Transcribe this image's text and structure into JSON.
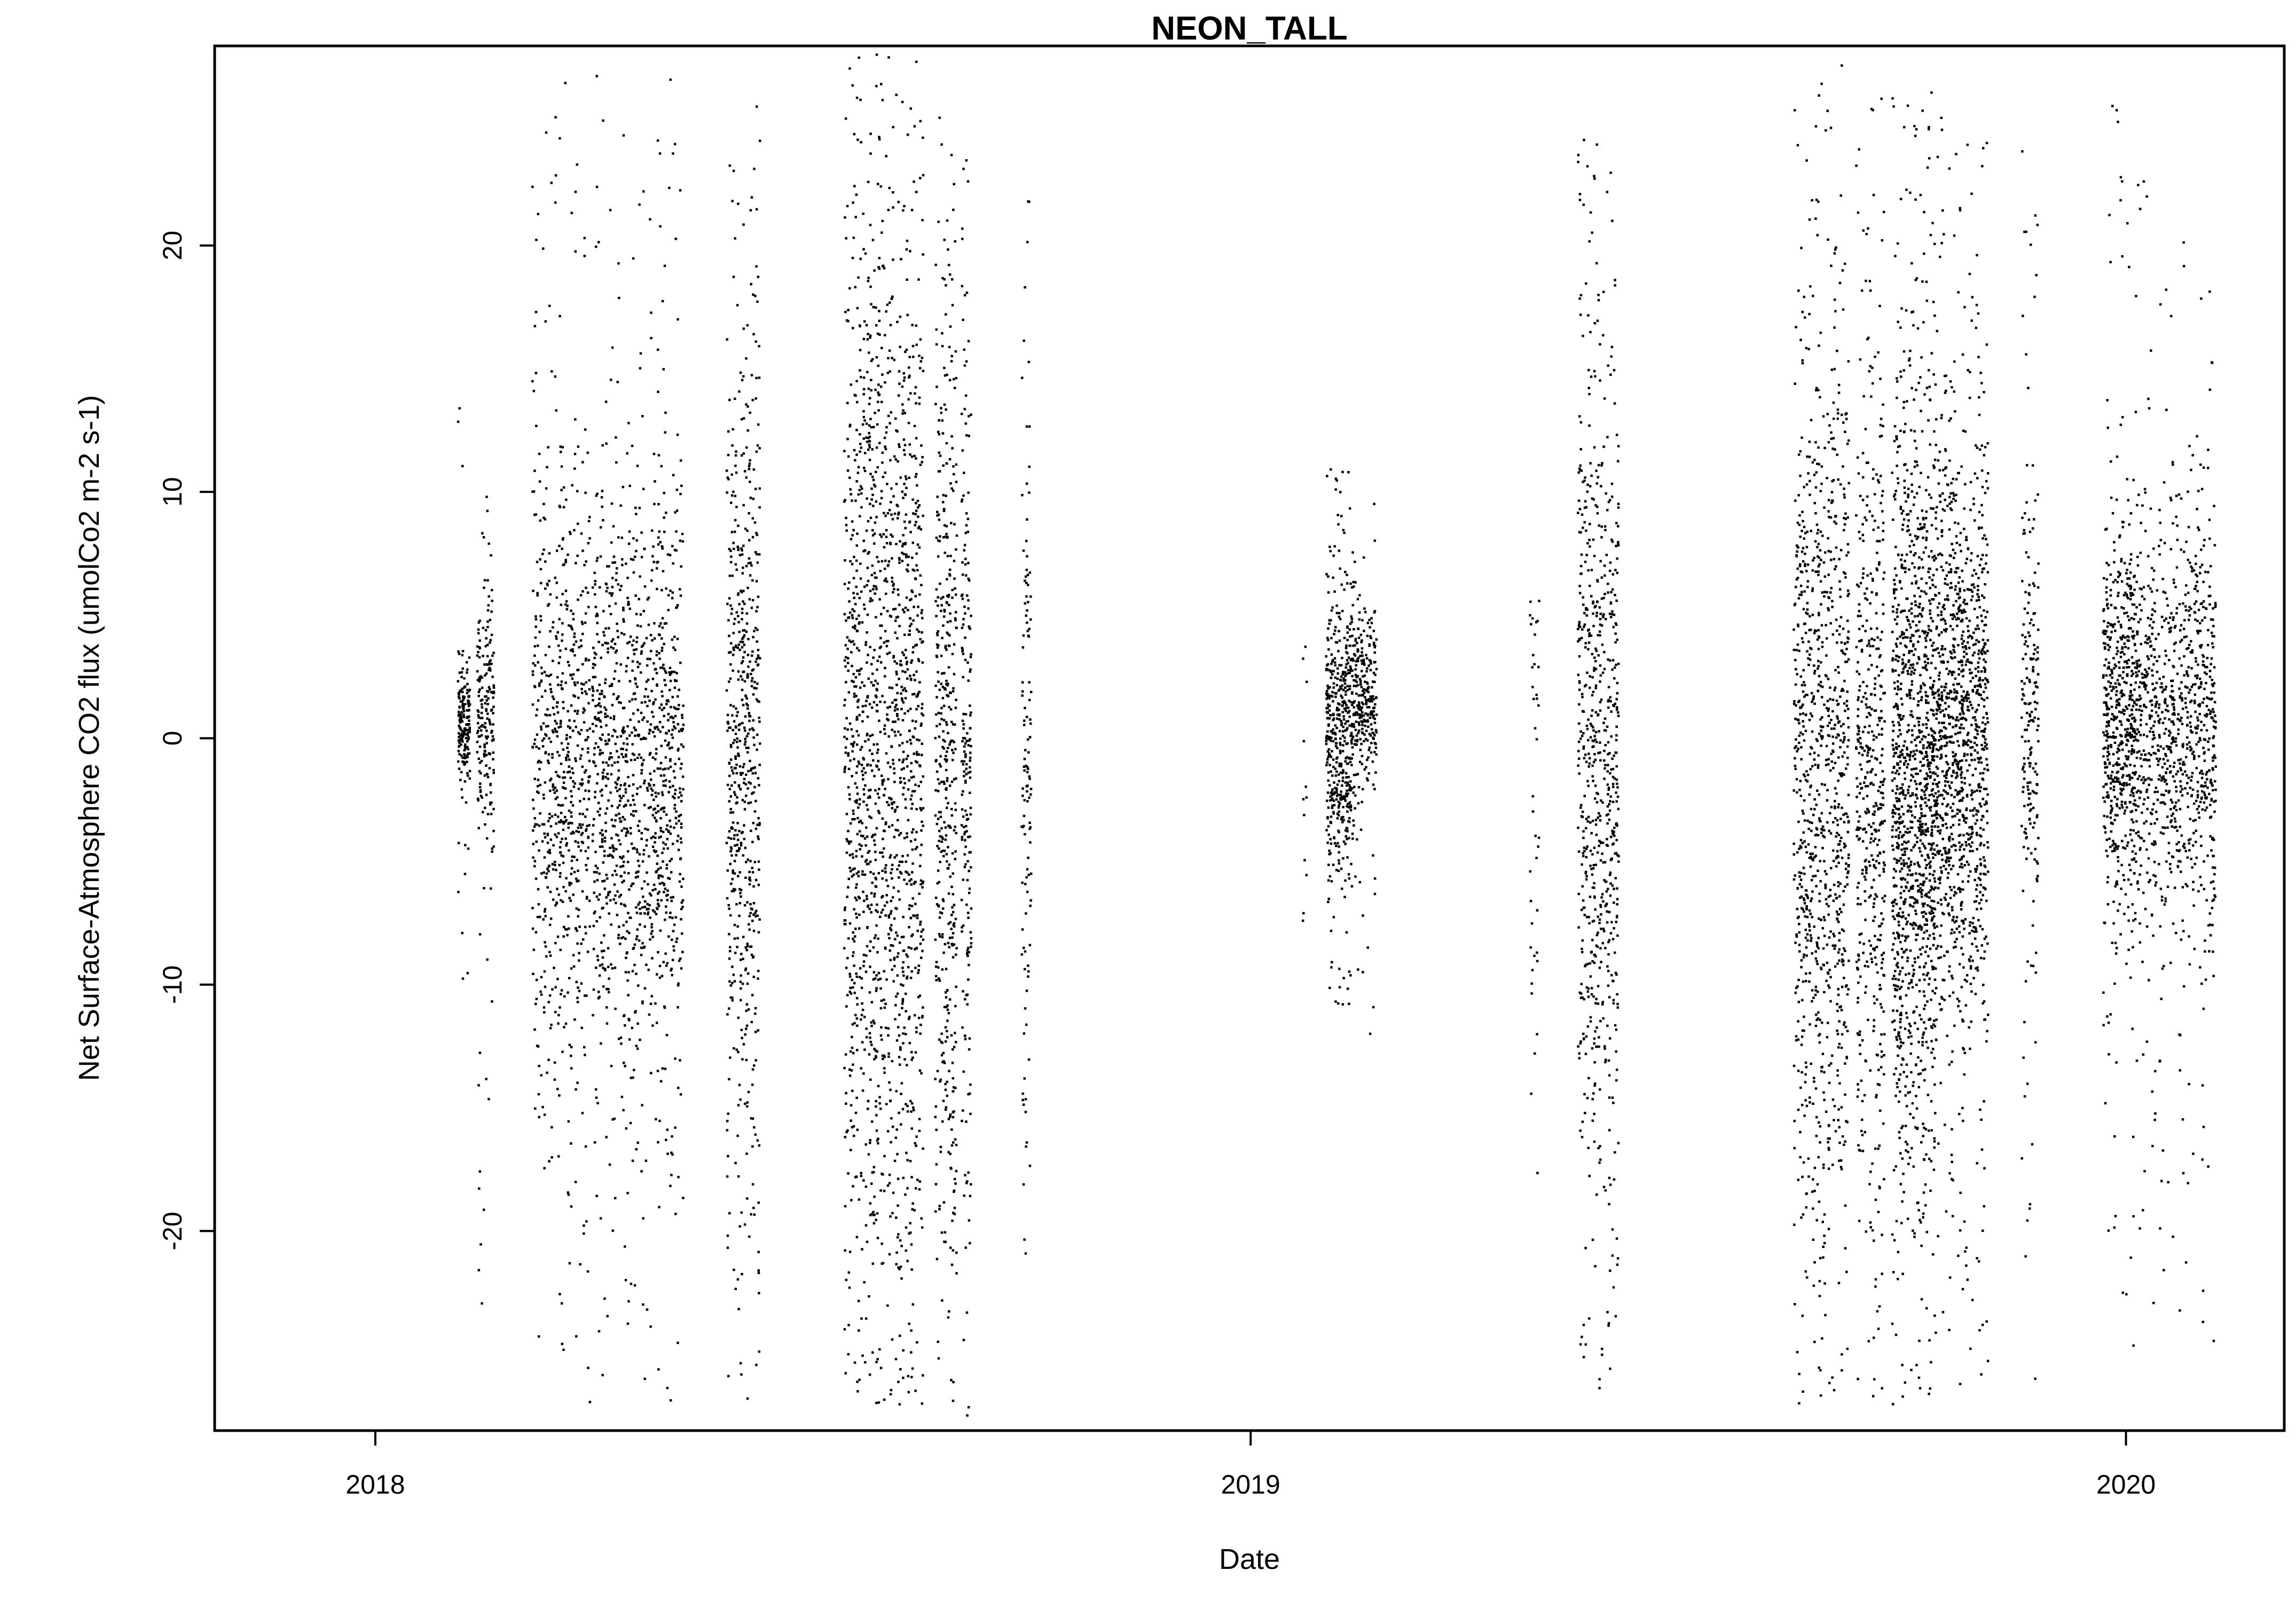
{
  "chart_data": {
    "type": "scatter",
    "title": "NEON_TALL",
    "xlabel": "Date",
    "ylabel": "Net Surface-Atmosphere CO2 flux (umolCo2 m-2 s-1)",
    "x_type": "date",
    "xlim": [
      "2017-10-26",
      "2020-03-07"
    ],
    "ylim": [
      -28.1,
      28.1
    ],
    "x_ticks": [
      {
        "value": "2018-01-01",
        "label": "2018"
      },
      {
        "value": "2019-01-01",
        "label": "2019"
      },
      {
        "value": "2020-01-01",
        "label": "2020"
      }
    ],
    "y_ticks": [
      {
        "value": -20,
        "label": "-20"
      },
      {
        "value": -10,
        "label": "-10"
      },
      {
        "value": 0,
        "label": "0"
      },
      {
        "value": 10,
        "label": "10"
      },
      {
        "value": 20,
        "label": "20"
      }
    ],
    "grid": false,
    "legend": "none",
    "point_color": "#000000",
    "series": [
      {
        "clusters": [
          {
            "start": "2018-02-04",
            "end": "2018-02-09",
            "center": 0.8,
            "spread": 1.2,
            "min": -10,
            "max": 14,
            "n": 180
          },
          {
            "start": "2018-02-12",
            "end": "2018-02-19",
            "center": 1.0,
            "spread": 2.5,
            "min": -23,
            "max": 12,
            "n": 200
          },
          {
            "start": "2018-03-07",
            "end": "2018-03-31",
            "center": -1.0,
            "spread": 6.0,
            "min": -27,
            "max": 27.5,
            "n": 700
          },
          {
            "start": "2018-04-01",
            "end": "2018-05-09",
            "center": -1.5,
            "spread": 6.0,
            "min": -27,
            "max": 27,
            "n": 1200
          },
          {
            "start": "2018-05-27",
            "end": "2018-06-10",
            "center": 0.0,
            "spread": 8.0,
            "min": -27.5,
            "max": 26,
            "n": 600
          },
          {
            "start": "2018-07-15",
            "end": "2018-08-17",
            "center": -1.0,
            "spread": 11.0,
            "min": -27,
            "max": 27.8,
            "n": 1600
          },
          {
            "start": "2018-08-22",
            "end": "2018-08-31",
            "center": -1.0,
            "spread": 10.0,
            "min": -27,
            "max": 26.5,
            "n": 450
          },
          {
            "start": "2018-09-02",
            "end": "2018-09-06",
            "center": 0.0,
            "spread": 10.0,
            "min": -27.5,
            "max": 24,
            "n": 200
          },
          {
            "start": "2018-09-27",
            "end": "2018-10-01",
            "center": 0.0,
            "spread": 8.0,
            "min": -21,
            "max": 27,
            "n": 120
          },
          {
            "start": "2019-01-22",
            "end": "2019-01-24",
            "center": 0.0,
            "spread": 4.0,
            "min": -8,
            "max": 4,
            "n": 12
          },
          {
            "start": "2019-02-01",
            "end": "2019-02-12",
            "center": 0.0,
            "spread": 3.0,
            "min": -11,
            "max": 11,
            "n": 500
          },
          {
            "start": "2019-02-12",
            "end": "2019-02-22",
            "center": 1.5,
            "spread": 2.0,
            "min": -12,
            "max": 10,
            "n": 300
          },
          {
            "start": "2019-04-27",
            "end": "2019-05-01",
            "center": -3.0,
            "spread": 8.0,
            "min": -19,
            "max": 6,
            "n": 40
          },
          {
            "start": "2019-05-17",
            "end": "2019-06-03",
            "center": -2.0,
            "spread": 8.0,
            "min": -27,
            "max": 26,
            "n": 700
          },
          {
            "start": "2019-08-15",
            "end": "2019-09-07",
            "center": -2.0,
            "spread": 9.0,
            "min": -27,
            "max": 27.5,
            "n": 1000
          },
          {
            "start": "2019-09-10",
            "end": "2019-09-22",
            "center": -2.0,
            "spread": 8.0,
            "min": -27,
            "max": 27.5,
            "n": 500
          },
          {
            "start": "2019-09-25",
            "end": "2019-10-13",
            "center": -2.0,
            "spread": 8.0,
            "min": -27,
            "max": 27,
            "n": 1300
          },
          {
            "start": "2019-10-13",
            "end": "2019-10-25",
            "center": 0.5,
            "spread": 6.0,
            "min": -27,
            "max": 27.5,
            "n": 700
          },
          {
            "start": "2019-10-25",
            "end": "2019-11-04",
            "center": 0.5,
            "spread": 6.0,
            "min": -26,
            "max": 25,
            "n": 500
          },
          {
            "start": "2019-11-18",
            "end": "2019-11-25",
            "center": 0.5,
            "spread": 4.5,
            "min": -26,
            "max": 24,
            "n": 200
          },
          {
            "start": "2019-12-22",
            "end": "2020-01-07",
            "center": 0.5,
            "spread": 4.0,
            "min": -25,
            "max": 26,
            "n": 700
          },
          {
            "start": "2020-01-07",
            "end": "2020-02-07",
            "center": 0.5,
            "spread": 4.0,
            "min": -25,
            "max": 23,
            "n": 900
          }
        ]
      }
    ]
  }
}
